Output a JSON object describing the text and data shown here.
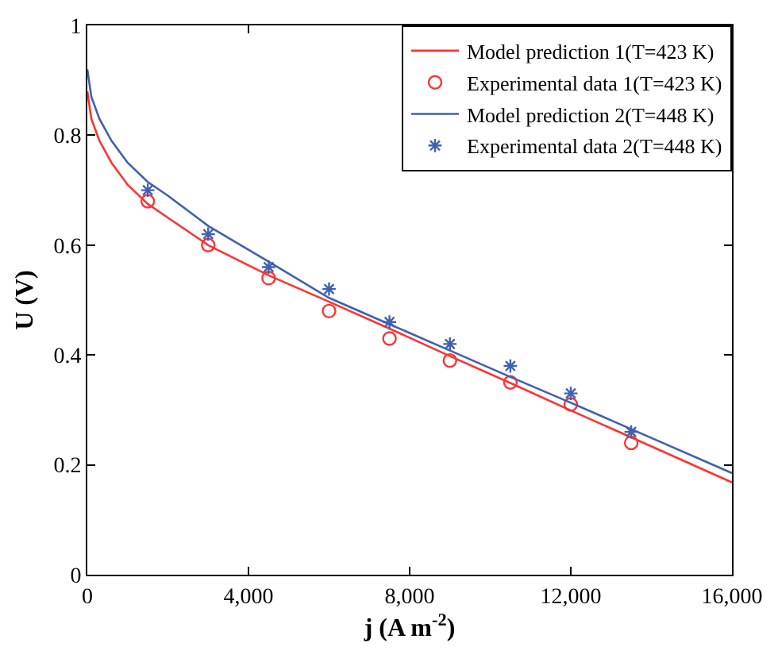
{
  "chart_data": {
    "type": "line",
    "xlabel": "j (A m$^{-2}$)",
    "ylabel": "U (V)",
    "xlim": [
      0,
      16000
    ],
    "ylim": [
      0,
      1
    ],
    "xticks": [
      0,
      {
        "value": 4000,
        "label": "4,000"
      },
      {
        "value": 8000,
        "label": "8,000"
      },
      {
        "value": 12000,
        "label": "12,000"
      },
      {
        "value": 16000,
        "label": "16,000"
      }
    ],
    "yticks": [
      0,
      0.2,
      0.4,
      0.6,
      0.8,
      1
    ],
    "legend": "top right",
    "series": [
      {
        "name": "Model prediction 1(T=423 K)",
        "color": "#ff3333",
        "marker": "none",
        "x": [
          0,
          100,
          300,
          600,
          1000,
          1500,
          2000,
          3000,
          4500,
          6000,
          7500,
          9000,
          10500,
          12000,
          13500,
          16000
        ],
        "values": [
          0.88,
          0.83,
          0.79,
          0.75,
          0.71,
          0.675,
          0.65,
          0.6,
          0.545,
          0.497,
          0.448,
          0.398,
          0.349,
          0.299,
          0.25,
          0.168
        ]
      },
      {
        "name": "Experimental data 1(T=423 K)",
        "type": "scatter",
        "color": "#ff3333",
        "marker": "circle",
        "x": [
          1500,
          3000,
          4500,
          6000,
          7500,
          9000,
          10500,
          12000,
          13500
        ],
        "values": [
          0.68,
          0.6,
          0.54,
          0.48,
          0.43,
          0.39,
          0.35,
          0.31,
          0.24
        ]
      },
      {
        "name": "Model prediction 2(T=448 K)",
        "color": "#4060b0",
        "marker": "none",
        "x": [
          0,
          100,
          300,
          600,
          1000,
          1500,
          2000,
          3000,
          4500,
          6000,
          7500,
          9000,
          10500,
          12000,
          13500,
          16000
        ],
        "values": [
          0.92,
          0.87,
          0.83,
          0.79,
          0.75,
          0.715,
          0.69,
          0.635,
          0.57,
          0.504,
          0.456,
          0.408,
          0.36,
          0.313,
          0.265,
          0.185
        ]
      },
      {
        "name": "Experimental data 2(T=448 K)",
        "type": "scatter",
        "color": "#4060b0",
        "marker": "cross",
        "x": [
          1500,
          3000,
          4500,
          6000,
          7500,
          9000,
          10500,
          12000,
          13500
        ],
        "values": [
          0.7,
          0.62,
          0.56,
          0.52,
          0.46,
          0.42,
          0.38,
          0.33,
          0.26
        ]
      }
    ]
  }
}
